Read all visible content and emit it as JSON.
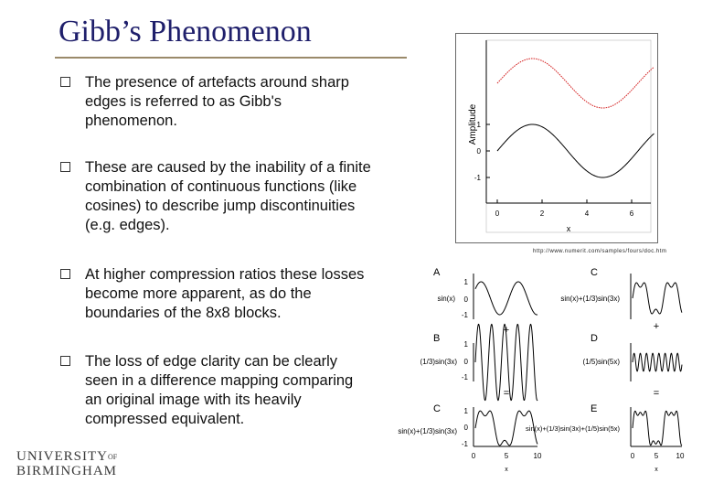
{
  "slide": {
    "title": "Gibb’s Phenomenon",
    "bullets": [
      "The presence of artefacts around sharp edges is referred to as Gibb's phenomenon.",
      "These are caused by the inability of a finite combination of continuous functions (like cosines) to describe jump discontinuities (e.g. edges).",
      "At higher compression ratios these losses become more apparent, as do the boundaries of the 8x8 blocks.",
      "The loss of edge clarity can be clearly seen in a difference mapping comparing an original image with its heavily compressed equivalent."
    ],
    "logo": {
      "line1": "UNIVERSITY",
      "line1_small": "OF",
      "line2": "BIRMINGHAM"
    }
  },
  "figure_top": {
    "ylabel": "Amplitude",
    "xlabel": "x",
    "yticks": [
      "1",
      "0",
      "-1"
    ],
    "xticks": [
      "0",
      "2",
      "4",
      "6"
    ],
    "source_url": "http://www.numerit.com/samples/fours/doc.htm"
  },
  "figure_bottom": {
    "panels": {
      "A": {
        "label": "A",
        "func": "sin(x)",
        "yticks": [
          "1",
          "0",
          "-1"
        ]
      },
      "B": {
        "label": "B",
        "func": "(1/3)sin(3x)",
        "yticks": [
          "1",
          "0",
          "-1"
        ]
      },
      "C_left": {
        "label": "C",
        "func": "sin(x)+(1/3)sin(3x)",
        "yticks": [
          "1",
          "0",
          "-1"
        ],
        "xticks": [
          "0",
          "5",
          "10"
        ],
        "xlabel": "x"
      },
      "C_right": {
        "label": "C",
        "func": "sin(x)+(1/3)sin(3x)"
      },
      "D": {
        "label": "D",
        "func": "(1/5)sin(5x)"
      },
      "E": {
        "label": "E",
        "func": "sin(x)+(1/3)sin(3x)+(1/5)sin(5x)",
        "xticks": [
          "0",
          "5",
          "10"
        ],
        "xlabel": "x"
      }
    },
    "ops": {
      "plus": "+",
      "equals": "="
    }
  },
  "colors": {
    "title": "#1f1f6b",
    "rule": "#9a8a6a",
    "red_curve": "#d42020"
  }
}
